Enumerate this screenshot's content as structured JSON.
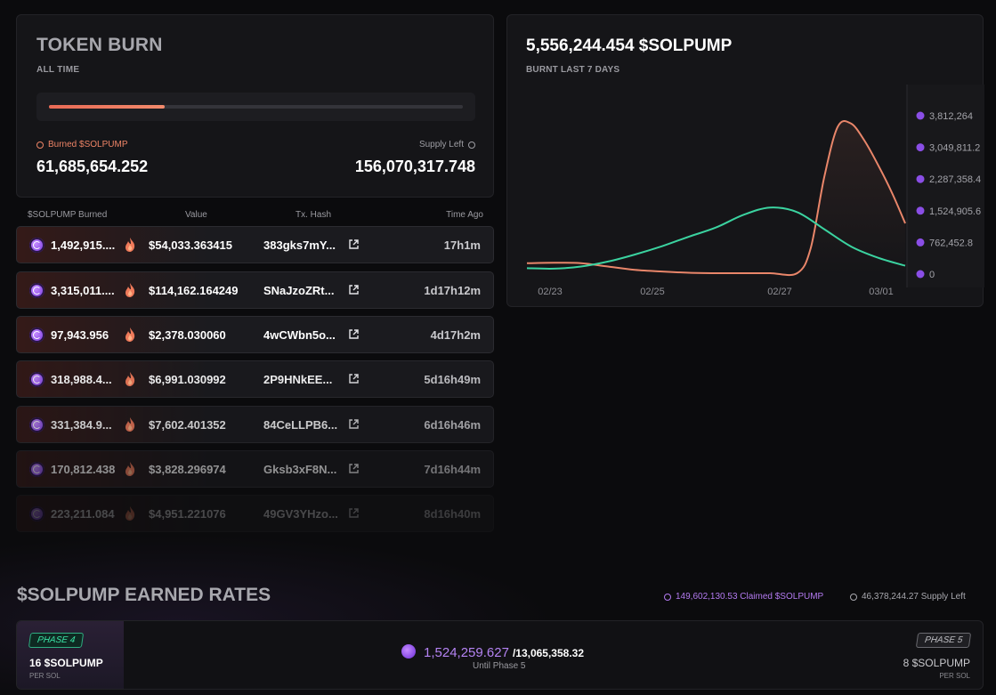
{
  "burn": {
    "title": "TOKEN BURN",
    "subtitle": "ALL TIME",
    "progress_pct": 28,
    "burned_label": "Burned $SOLPUMP",
    "burned_value": "61,685,654.252",
    "supply_label": "Supply Left",
    "supply_value": "156,070,317.748",
    "colors": {
      "accent": "#ee8466"
    }
  },
  "table": {
    "headers": [
      "$SOLPUMP Burned",
      "Value",
      "Tx. Hash",
      "Time Ago"
    ],
    "rows": [
      {
        "amount": "1,492,915....",
        "value": "$54,033.363415",
        "hash": "383gks7mY...",
        "ago": "17h1m"
      },
      {
        "amount": "3,315,011....",
        "value": "$114,162.164249",
        "hash": "SNaJzoZRt...",
        "ago": "1d17h12m"
      },
      {
        "amount": "97,943.956",
        "value": "$2,378.030060",
        "hash": "4wCWbn5o...",
        "ago": "4d17h2m"
      },
      {
        "amount": "318,988.4...",
        "value": "$6,991.030992",
        "hash": "2P9HNkEE...",
        "ago": "5d16h49m"
      },
      {
        "amount": "331,384.9...",
        "value": "$7,602.401352",
        "hash": "84CeLLPB6...",
        "ago": "6d16h46m"
      },
      {
        "amount": "170,812.438",
        "value": "$3,828.296974",
        "hash": "Gksb3xF8N...",
        "ago": "7d16h44m"
      },
      {
        "amount": "223,211.084",
        "value": "$4,951.221076",
        "hash": "49GV3YHzo...",
        "ago": "8d16h40m"
      }
    ]
  },
  "weekly": {
    "title": "5,556,244.454 $SOLPUMP",
    "subtitle": "BURNT LAST 7 DAYS"
  },
  "chart_data": {
    "type": "line",
    "title": "5,556,244.454 $SOLPUMP",
    "subtitle": "BURNT LAST 7 DAYS",
    "x_ticks": [
      "02/23",
      "02/25",
      "02/27",
      "03/01"
    ],
    "y_ticks": [
      "0",
      "762,452.8",
      "1,524,905.6",
      "2,287,358.4",
      "3,049,811.2",
      "3,812,264"
    ],
    "ylim": [
      0,
      3812264
    ],
    "series": [
      {
        "name": "burn",
        "color": "#e9866a",
        "x": [
          0,
          0.5,
          1,
          1.5,
          2,
          2.5,
          3,
          3.5,
          4,
          4.5,
          5,
          5.25,
          5.5,
          5.75,
          6,
          6.25,
          6.5,
          6.75,
          7
        ],
        "values": [
          240000,
          250000,
          240000,
          160000,
          80000,
          40000,
          10000,
          0,
          0,
          0,
          0,
          600000,
          2300000,
          3520000,
          3600000,
          3180000,
          2600000,
          1950000,
          1200000
        ]
      },
      {
        "name": "value",
        "color": "#3bd3a0",
        "x": [
          0,
          0.5,
          1,
          1.5,
          2,
          2.5,
          3,
          3.5,
          4,
          4.5,
          5,
          5.5,
          6,
          6.5,
          7
        ],
        "values": [
          120000,
          110000,
          160000,
          280000,
          450000,
          650000,
          880000,
          1100000,
          1400000,
          1580000,
          1470000,
          1060000,
          640000,
          370000,
          180000
        ]
      }
    ]
  },
  "rates": {
    "title": "$SOLPUMP EARNED RATES",
    "claimed": "149,602,130.53 Claimed $SOLPUMP",
    "supply_left": "46,378,244.27 Supply Left",
    "phase_current": {
      "badge": "PHASE 4",
      "amount": "16 $SOLPUMP",
      "per": "PER SOL"
    },
    "phase_next": {
      "badge": "PHASE 5",
      "amount": "8 $SOLPUMP",
      "per": "PER SOL"
    },
    "progress_current": "1,524,259.627",
    "progress_total": "/13,065,358.32",
    "progress_sub": "Until Phase 5",
    "colors": {
      "claimed": "#b37af0",
      "phase4": "#3be3a6"
    }
  }
}
